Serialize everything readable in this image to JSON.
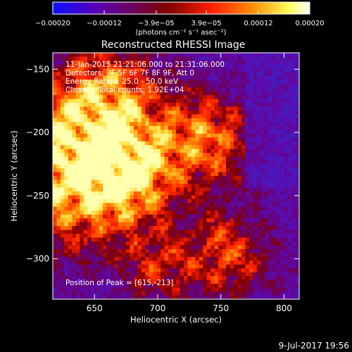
{
  "chart_data": {
    "type": "heatmap",
    "title": "Reconstructed RHESSI Image",
    "xlabel": "Heliocentric X (arcsec)",
    "ylabel": "Heliocentric Y (arcsec)",
    "xlim": [
      617,
      812
    ],
    "ylim": [
      -332,
      -137
    ],
    "xticks": [
      650,
      700,
      750,
      800
    ],
    "xtick_labels": [
      "650",
      "700",
      "750",
      "800"
    ],
    "yticks": [
      -150,
      -200,
      -250,
      -300
    ],
    "ytick_labels": [
      "−150",
      "−200",
      "−250",
      "−300"
    ],
    "colorbar": {
      "range": [
        -0.0002,
        0.0002
      ],
      "ticks": [
        -0.0002,
        -0.00012,
        -3.9e-05,
        3.9e-05,
        0.00012,
        0.0002
      ],
      "tick_labels": [
        "−0.00020",
        "−0.00012",
        "−3.9e−05",
        "3.9e−05",
        "0.00012",
        "0.00020"
      ],
      "unit_label": "(photons cm⁻² s⁻¹ asec⁻²)",
      "colors": [
        "#1010ff",
        "#5a00b0",
        "#800000",
        "#ff2000",
        "#ff9000",
        "#ffff60",
        "#ffffff"
      ]
    },
    "annotations": {
      "time": "11-Jan-2015 21:21:06.000 to 21:31:06.000",
      "detectors": "Detectors: 3F 5F 6F 7F 8F 9F, Att 0",
      "energy": "Energy Range: 25.0 - 50.0 keV",
      "method": "Clean     Total counts: 1.92E+04",
      "peak": "Position of Peak = [615,-213]"
    },
    "peak_position": [
      615,
      -213
    ],
    "grid": false,
    "legend": "none"
  },
  "footer": {
    "date": "9-Jul-2017 19:56"
  }
}
